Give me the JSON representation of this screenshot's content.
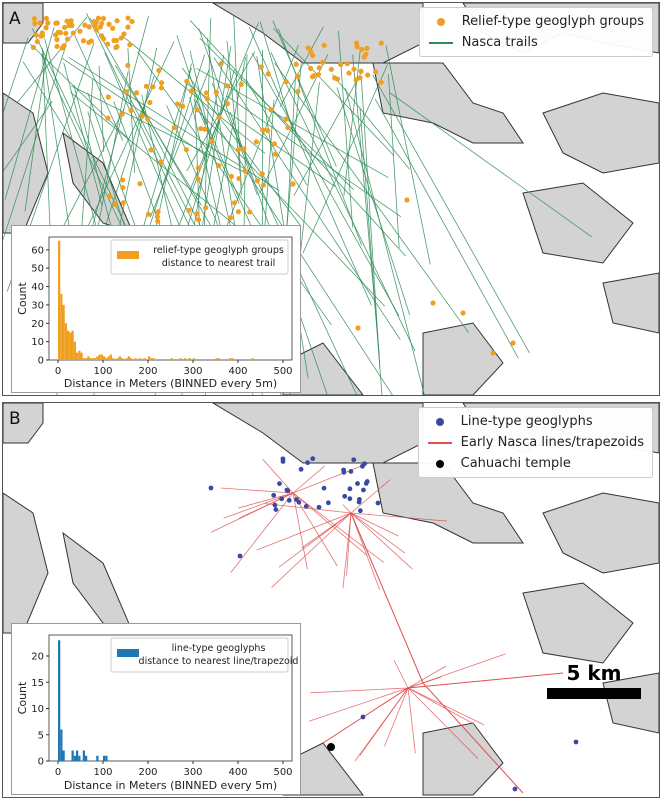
{
  "panel_a": {
    "letter": "A",
    "legend": [
      {
        "label": "Relief-type geoglyph groups",
        "symbol": "dot",
        "color": "#f0a020"
      },
      {
        "label": "Nasca trails",
        "symbol": "line",
        "color": "#2e8b57"
      }
    ]
  },
  "panel_b": {
    "letter": "B",
    "legend": [
      {
        "label": "Line-type geoglyphs",
        "symbol": "dot",
        "color": "#3a4aa0"
      },
      {
        "label": "Early Nasca lines/trapezoids",
        "symbol": "line",
        "color": "#e05050"
      },
      {
        "label": "Cahuachi temple",
        "symbol": "dot",
        "color": "#000000"
      }
    ],
    "scale_label": "5 km"
  },
  "colors": {
    "terrain": "#d3d3d3",
    "terrain_edge": "#333333"
  },
  "chart_data": [
    {
      "type": "bar",
      "legend": "relief-type geoglyph groups\ndistance to nearest trail",
      "legend_lines": [
        "relief-type geoglyph groups",
        "distance to nearest trail"
      ],
      "color": "#f0a020",
      "xlabel": "Distance in Meters (BINNED every 5m)",
      "ylabel": "Count",
      "xlim": [
        -20,
        520
      ],
      "ylim": [
        0,
        67
      ],
      "xticks": [
        0,
        100,
        200,
        300,
        400,
        500
      ],
      "yticks": [
        0,
        10,
        20,
        30,
        40,
        50,
        60
      ],
      "bin_width": 5,
      "bins": [
        0,
        5,
        10,
        15,
        20,
        25,
        30,
        35,
        40,
        45,
        50,
        55,
        60,
        65,
        70,
        75,
        80,
        85,
        90,
        95,
        100,
        105,
        110,
        115,
        120,
        130,
        135,
        140,
        150,
        155,
        160,
        170,
        180,
        190,
        200,
        205,
        210,
        250,
        270,
        280,
        290,
        300,
        350,
        355,
        380,
        385,
        430
      ],
      "values": [
        65,
        36,
        30,
        20,
        16,
        15,
        16,
        10,
        4,
        5,
        4,
        1,
        1,
        2,
        1,
        1,
        1,
        2,
        3,
        3,
        2,
        1,
        2,
        3,
        1,
        1,
        2,
        1,
        1,
        2,
        1,
        1,
        1,
        1,
        2,
        1,
        1,
        1,
        1,
        1,
        1,
        1,
        1,
        1,
        1,
        1,
        1
      ]
    },
    {
      "type": "bar",
      "legend_lines": [
        "line-type geoglyphs",
        "distance to nearest line/trapezoid"
      ],
      "color": "#1f77b4",
      "xlabel": "Distance in Meters (BINNED every 5m)",
      "ylabel": "Count",
      "xlim": [
        -20,
        520
      ],
      "ylim": [
        0,
        24
      ],
      "xticks": [
        0,
        100,
        200,
        300,
        400,
        500
      ],
      "yticks": [
        0,
        5,
        10,
        15,
        20
      ],
      "bin_width": 5,
      "bins": [
        0,
        5,
        10,
        30,
        35,
        40,
        45,
        55,
        60,
        85,
        100,
        105
      ],
      "values": [
        23,
        6,
        2,
        2,
        1,
        2,
        1,
        2,
        1,
        1,
        1,
        1
      ]
    }
  ]
}
